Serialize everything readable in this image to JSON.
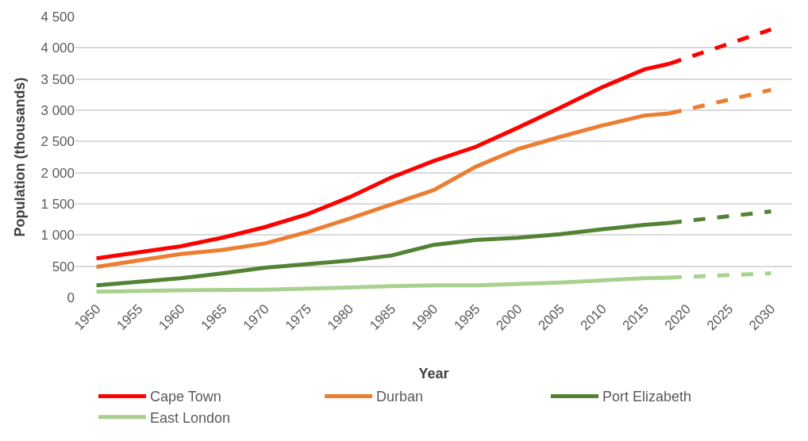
{
  "chart_data": {
    "type": "line",
    "xlabel": "Year",
    "ylabel": "Population (thousands)",
    "xlim": [
      1947.5,
      2032.5
    ],
    "xticks": [
      1950,
      1955,
      1960,
      1965,
      1970,
      1975,
      1980,
      1985,
      1990,
      1995,
      2000,
      2005,
      2010,
      2015,
      2020,
      2025,
      2030
    ],
    "ylim": [
      0,
      4500
    ],
    "yticks": [
      {
        "value": 0,
        "label": "0"
      },
      {
        "value": 500,
        "label": "500"
      },
      {
        "value": 1000,
        "label": "1 000"
      },
      {
        "value": 1500,
        "label": "1 500"
      },
      {
        "value": 2000,
        "label": "2 000"
      },
      {
        "value": 2500,
        "label": "2 500"
      },
      {
        "value": 3000,
        "label": "3 000"
      },
      {
        "value": 3500,
        "label": "3 500"
      },
      {
        "value": 4000,
        "label": "4 000"
      },
      {
        "value": 4500,
        "label": "4 500"
      }
    ],
    "grid": "y",
    "legend": "bottom",
    "marker": "none",
    "series": [
      {
        "name": "Cape Town",
        "color": "#ff0000",
        "line_style": "solid",
        "x": [
          1950,
          1960,
          1965,
          1970,
          1975,
          1980,
          1985,
          1990,
          1995,
          2000,
          2005,
          2010,
          2015,
          2018
        ],
        "values": [
          626,
          820,
          960,
          1128,
          1333,
          1606,
          1925,
          2187,
          2415,
          2722,
          3041,
          3371,
          3656,
          3747
        ]
      },
      {
        "name": "Durban",
        "color": "#ed7d31",
        "line_style": "solid",
        "x": [
          1950,
          1960,
          1965,
          1970,
          1975,
          1980,
          1985,
          1990,
          1995,
          2000,
          2005,
          2010,
          2015,
          2018
        ],
        "values": [
          490,
          695,
          763,
          866,
          1048,
          1264,
          1492,
          1720,
          2096,
          2380,
          2574,
          2756,
          2916,
          2950
        ]
      },
      {
        "name": "Port Elizabeth",
        "color": "#548235",
        "line_style": "solid",
        "x": [
          1950,
          1960,
          1965,
          1970,
          1975,
          1980,
          1985,
          1990,
          1995,
          2000,
          2005,
          2010,
          2015,
          2018
        ],
        "values": [
          194,
          308,
          387,
          478,
          535,
          592,
          672,
          843,
          922,
          957,
          1014,
          1093,
          1162,
          1196
        ]
      },
      {
        "name": "East London",
        "color": "#a9d18e",
        "line_style": "solid",
        "x": [
          1950,
          1960,
          1970,
          1980,
          1985,
          1990,
          1995,
          2000,
          2005,
          2010,
          2015,
          2018
        ],
        "values": [
          91,
          114,
          125,
          159,
          182,
          194,
          194,
          216,
          239,
          273,
          307,
          319
        ]
      },
      {
        "color": "#ff0000",
        "line_style": "dashed",
        "x": [
          2018,
          2030
        ],
        "values": [
          3747,
          4294
        ]
      },
      {
        "color": "#ed7d31",
        "line_style": "dashed",
        "x": [
          2018,
          2030
        ],
        "values": [
          2950,
          3326
        ]
      },
      {
        "color": "#548235",
        "line_style": "dashed",
        "x": [
          2018,
          2030
        ],
        "values": [
          1196,
          1378
        ]
      },
      {
        "color": "#a9d18e",
        "line_style": "dashed",
        "x": [
          2018,
          2030
        ],
        "values": [
          319,
          387
        ]
      }
    ]
  }
}
